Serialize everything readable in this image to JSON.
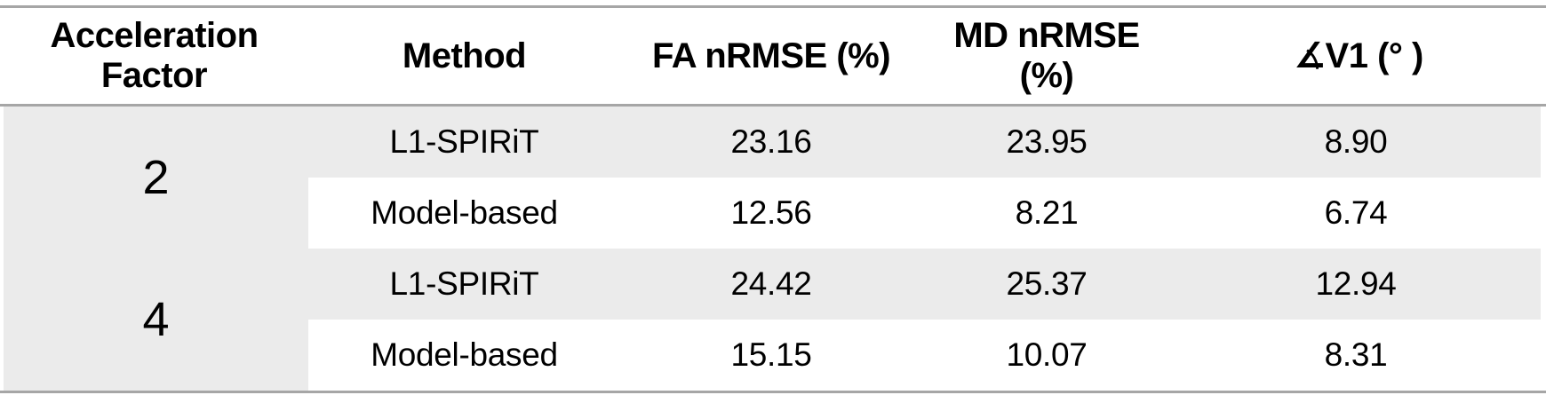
{
  "colors": {
    "background": "#ffffff",
    "band_fill": "#ebebeb",
    "border_line": "#a6a6a6",
    "text": "#000000"
  },
  "table": {
    "headers": {
      "acceleration_factor": "Acceleration Factor",
      "method": "Method",
      "fa_nrmse": "FA nRMSE (%)",
      "md_nrmse": "MD nRMSE (%)",
      "v1_angle": "∡V1 (° )"
    },
    "groups": [
      {
        "factor": "2",
        "rows": [
          {
            "method": "L1-SPIRiT",
            "fa": "23.16",
            "md": "23.95",
            "v1": "8.90"
          },
          {
            "method": "Model-based",
            "fa": "12.56",
            "md": "8.21",
            "v1": "6.74"
          }
        ]
      },
      {
        "factor": "4",
        "rows": [
          {
            "method": "L1-SPIRiT",
            "fa": "24.42",
            "md": "25.37",
            "v1": "12.94"
          },
          {
            "method": "Model-based",
            "fa": "15.15",
            "md": "10.07",
            "v1": "8.31"
          }
        ]
      }
    ]
  },
  "chart_data": {
    "type": "table",
    "title": "",
    "columns": [
      "Acceleration Factor",
      "Method",
      "FA nRMSE (%)",
      "MD nRMSE (%)",
      "∡V1 (°)"
    ],
    "rows": [
      [
        "2",
        "L1-SPIRiT",
        23.16,
        23.95,
        8.9
      ],
      [
        "2",
        "Model-based",
        12.56,
        8.21,
        6.74
      ],
      [
        "4",
        "L1-SPIRiT",
        24.42,
        25.37,
        12.94
      ],
      [
        "4",
        "Model-based",
        15.15,
        10.07,
        8.31
      ]
    ],
    "layout": {
      "shading": "L1-SPIRiT rows and Acceleration Factor column shaded light gray; Model-based rows white",
      "merged_cells": "Acceleration Factor values 2 and 4 each span two method rows",
      "borders": "horizontal gray rules above header, below header, and below last row"
    }
  }
}
